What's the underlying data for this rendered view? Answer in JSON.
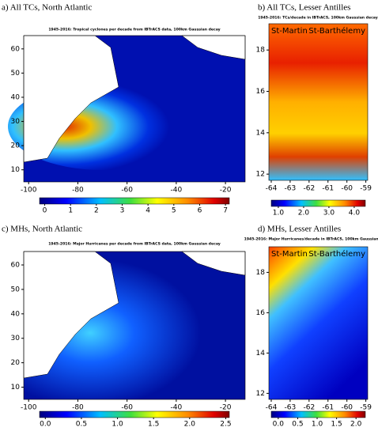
{
  "panels": [
    {
      "title": "a) All TCs, North Atlantic",
      "subtitle": "1945-2016: Tropical cyclones per decade from IBTrACS  data, 100km Gaussian decay",
      "xlim": [
        -102,
        -12
      ],
      "xticks": [
        -100,
        -80,
        -60,
        -40,
        -20
      ],
      "ylim": [
        5,
        65.5
      ],
      "yticks": [
        10,
        20,
        30,
        40,
        50,
        60
      ],
      "colorbar": {
        "range": [
          -0.2,
          7.15
        ],
        "ticks": [
          0,
          1,
          2,
          3,
          4,
          5,
          6,
          7
        ]
      }
    },
    {
      "title": "b) All TCs, Lesser Antilles",
      "subtitle": "1945-2016: TCs/decade in IBTrACS, 100km Gaussian decay",
      "places": [
        "St-Martin",
        "St-Barthélemy"
      ],
      "xlim": [
        -64.125,
        -58.9
      ],
      "xticks": [
        -64,
        -63,
        -62,
        -61,
        -60,
        -59
      ],
      "ylim": [
        11.7,
        19.27
      ],
      "yticks": [
        12,
        14,
        16,
        18
      ],
      "colorbar": {
        "range": [
          0.72,
          4.44
        ],
        "ticks": [
          {
            "value": 1,
            "label": "1.0"
          },
          {
            "value": 2,
            "label": "2.0"
          },
          {
            "value": 3,
            "label": "3.0"
          },
          {
            "value": 4,
            "label": "4.0"
          }
        ]
      }
    },
    {
      "title": "c) MHs, North Atlantic",
      "subtitle": "1945-2016: Major Hurricanes per decade from IBTrACS  data, 100km Gaussian decay",
      "xlim": [
        -102,
        -12
      ],
      "xticks": [
        -100,
        -80,
        -60,
        -40,
        -20
      ],
      "ylim": [
        5,
        65.5
      ],
      "yticks": [
        10,
        20,
        30,
        40,
        50,
        60
      ],
      "colorbar": {
        "range": [
          -0.08,
          2.55
        ],
        "ticks": [
          {
            "value": 0,
            "label": "0.0"
          },
          {
            "value": 0.5,
            "label": "0.5"
          },
          {
            "value": 1,
            "label": "1.0"
          },
          {
            "value": 1.5,
            "label": "1.5"
          },
          {
            "value": 2,
            "label": "2.0"
          },
          {
            "value": 2.5,
            "label": "2.5"
          }
        ]
      }
    },
    {
      "title": "d) MHs, Lesser Antilles",
      "subtitle": "1945-2016: Major Hurricanes/decade in IBTrACS, 100km Gaussian decay",
      "places": [
        "St-Martin",
        "St-Barthélemy"
      ],
      "xlim": [
        -64.125,
        -58.9
      ],
      "xticks": [
        -64,
        -63,
        -62,
        -61,
        -60,
        -59
      ],
      "ylim": [
        11.7,
        19.27
      ],
      "yticks": [
        12,
        14,
        16,
        18
      ],
      "colorbar": {
        "range": [
          -0.18,
          2.24
        ],
        "ticks": [
          {
            "value": 0,
            "label": "0.0"
          },
          {
            "value": 0.5,
            "label": "0.5"
          },
          {
            "value": 1,
            "label": "1.0"
          },
          {
            "value": 1.5,
            "label": "1.5"
          },
          {
            "value": 2,
            "label": "2.0"
          }
        ]
      }
    }
  ]
}
